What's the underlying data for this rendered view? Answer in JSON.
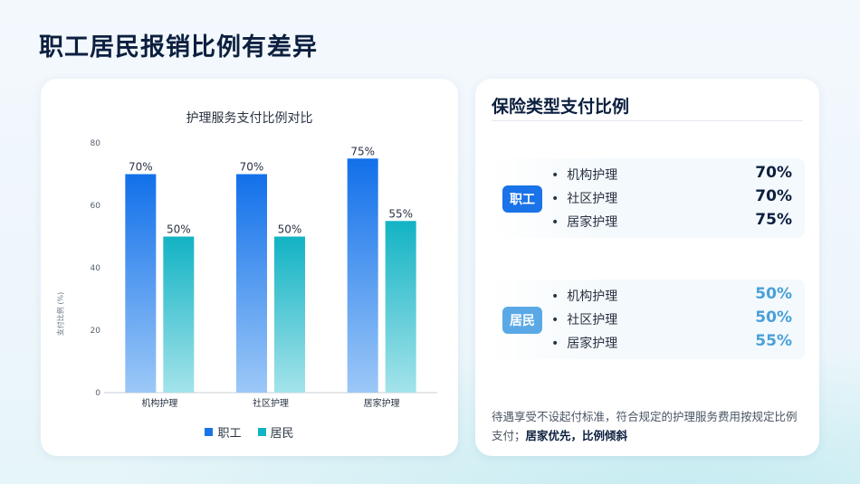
{
  "page_title": "职工居民报销比例有差异",
  "chart_data": {
    "type": "bar",
    "title": "护理服务支付比例对比",
    "ylabel": "支付比例 (%)",
    "xlabel": "",
    "categories": [
      "机构护理",
      "社区护理",
      "居家护理"
    ],
    "series": [
      {
        "name": "职工",
        "values": [
          70,
          70,
          75
        ],
        "labels": [
          "70%",
          "70%",
          "75%"
        ]
      },
      {
        "name": "居民",
        "values": [
          50,
          50,
          55
        ],
        "labels": [
          "50%",
          "50%",
          "55%"
        ]
      }
    ],
    "ylim": [
      0,
      80
    ],
    "yticks": [
      "0",
      "20",
      "40",
      "60",
      "80"
    ],
    "grid": false,
    "legend": "bottom",
    "colors": {
      "职工": "#1a73e8",
      "居民": "#12b3c4"
    }
  },
  "panel": {
    "title": "保险类型支付比例",
    "groups": [
      {
        "badge": "职工",
        "items": [
          {
            "label": "机构护理",
            "value": "70%"
          },
          {
            "label": "社区护理",
            "value": "70%"
          },
          {
            "label": "居家护理",
            "value": "75%"
          }
        ]
      },
      {
        "badge": "居民",
        "items": [
          {
            "label": "机构护理",
            "value": "50%"
          },
          {
            "label": "社区护理",
            "value": "50%"
          },
          {
            "label": "居家护理",
            "value": "55%"
          }
        ]
      }
    ],
    "note_text": "待遇享受不设起付标准，符合规定的护理服务费用按规定比例支付；",
    "note_emphasis": "居家优先，比例倾斜"
  }
}
